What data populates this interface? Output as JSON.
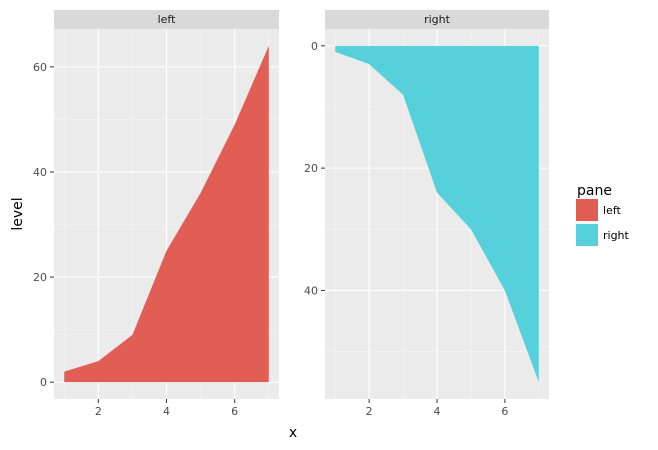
{
  "chart_data": {
    "type": "area",
    "xlabel": "x",
    "ylabel": "level",
    "legend": {
      "title": "pane",
      "position": "right",
      "entries": [
        {
          "label": "left",
          "color": "#e05e54"
        },
        {
          "label": "right",
          "color": "#56d1db"
        }
      ]
    },
    "grid": true,
    "panels": [
      {
        "strip": "left",
        "color": "#e05e54",
        "x": [
          1,
          2,
          3,
          4,
          5,
          6,
          7
        ],
        "y": [
          2,
          4,
          9,
          25,
          36,
          49,
          64
        ],
        "xlim": [
          0.7,
          7.3
        ],
        "ylim": [
          -3.2,
          67.2
        ],
        "y_reversed": false,
        "x_ticks": [
          2,
          4,
          6
        ],
        "y_ticks": [
          0,
          20,
          40,
          60
        ]
      },
      {
        "strip": "right",
        "color": "#56d1db",
        "x": [
          1,
          2,
          3,
          4,
          5,
          6,
          7
        ],
        "y": [
          1,
          3,
          8,
          24,
          30,
          40,
          55
        ],
        "xlim": [
          0.7,
          7.3
        ],
        "ylim": [
          -2.75,
          57.75
        ],
        "y_reversed": true,
        "x_ticks": [
          2,
          4,
          6
        ],
        "y_ticks": [
          0,
          20,
          40
        ]
      }
    ]
  }
}
